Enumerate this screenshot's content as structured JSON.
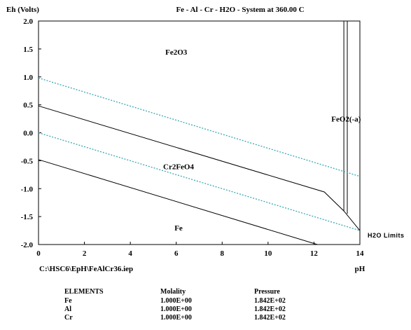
{
  "colors": {
    "background": "#ffffff",
    "axis": "#000000",
    "boundary": "#000000",
    "water_limit": "#3aa7b5"
  },
  "chart_data": {
    "type": "line",
    "title": "Fe - Al - Cr - H2O - System at 360.00 C",
    "ylabel": "Eh (Volts)",
    "xlabel": "pH",
    "file_path": "C:\\HSC6\\EpH\\FeAlCr36.iep",
    "xlim": [
      0,
      14
    ],
    "ylim": [
      -2.0,
      2.0
    ],
    "x_ticks": [
      0,
      2,
      4,
      6,
      8,
      10,
      12,
      14
    ],
    "x_tick_labels": [
      "0",
      "2",
      "4",
      "6",
      "8",
      "10",
      "12",
      "14"
    ],
    "y_ticks": [
      2.0,
      1.5,
      1.0,
      0.5,
      0.0,
      -0.5,
      -1.0,
      -1.5,
      -2.0
    ],
    "y_tick_labels": [
      "2.0",
      "1.5",
      "1.0",
      "0.5",
      "0.0",
      "-0.5",
      "-1.0",
      "-1.5",
      "-2.0"
    ],
    "grid": false,
    "series": [
      {
        "role": "boundary",
        "style": "solid",
        "points": [
          [
            0,
            0.48
          ],
          [
            12.45,
            -1.06
          ],
          [
            13.3,
            -1.4
          ],
          [
            14,
            -1.75
          ]
        ]
      },
      {
        "role": "boundary",
        "style": "solid",
        "points": [
          [
            0,
            -0.48
          ],
          [
            12.15,
            -2.0
          ]
        ]
      },
      {
        "role": "boundary",
        "style": "solid",
        "points": [
          [
            13.3,
            -1.4
          ],
          [
            13.3,
            2.0
          ]
        ]
      },
      {
        "role": "boundary",
        "style": "solid",
        "points": [
          [
            13.45,
            -1.45
          ],
          [
            13.45,
            2.0
          ]
        ]
      },
      {
        "role": "water_limit",
        "style": "dotted",
        "points": [
          [
            0,
            0.98
          ],
          [
            14,
            -0.78
          ]
        ]
      },
      {
        "role": "water_limit",
        "style": "dotted",
        "points": [
          [
            0,
            0.0
          ],
          [
            14,
            -1.75
          ]
        ]
      }
    ],
    "annotations": [
      {
        "text": "Fe2O3",
        "x": 6.0,
        "y": 1.4
      },
      {
        "text": "FeO2(-a)",
        "x": 13.4,
        "y": 0.2
      },
      {
        "text": "Cr2FeO4",
        "x": 6.1,
        "y": -0.65
      },
      {
        "text": "Fe",
        "x": 6.1,
        "y": -1.75
      }
    ],
    "h2o_limits_label": "H2O Limits"
  },
  "elements_table": {
    "headers": [
      "ELEMENTS",
      "Molality",
      "Pressure"
    ],
    "rows": [
      [
        "Fe",
        "1.000E+00",
        "1.842E+02"
      ],
      [
        "Al",
        "1.000E+00",
        "1.842E+02"
      ],
      [
        "Cr",
        "1.000E+00",
        "1.842E+02"
      ]
    ]
  }
}
